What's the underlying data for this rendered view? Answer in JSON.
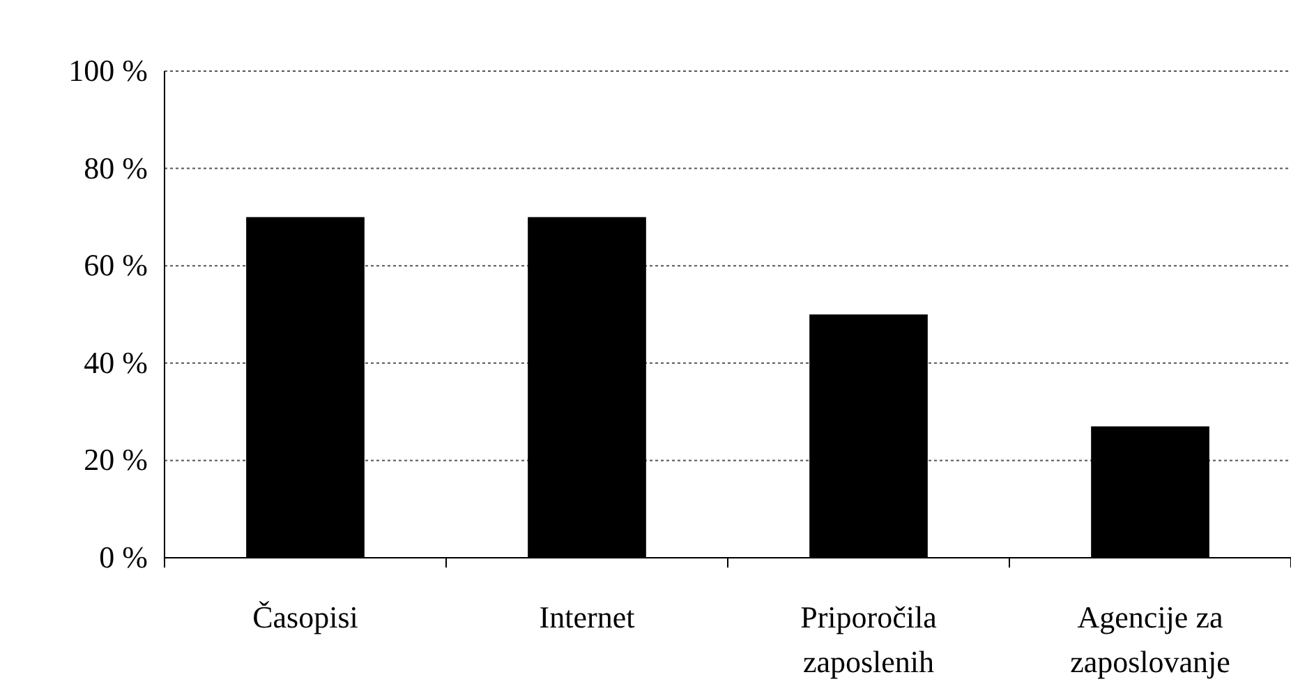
{
  "chart_data": {
    "type": "bar",
    "categories": [
      "Časopisi",
      "Internet",
      "Priporočila zaposlenih",
      "Agencije za zaposlovanje"
    ],
    "values": [
      70,
      70,
      50,
      27
    ],
    "color": "#000000",
    "ylim": [
      0,
      100
    ],
    "yticks": [
      {
        "value": 0,
        "label": "0 %"
      },
      {
        "value": 20,
        "label": "20 %"
      },
      {
        "value": 40,
        "label": "40 %"
      },
      {
        "value": 60,
        "label": "60 %"
      },
      {
        "value": 80,
        "label": "80 %"
      },
      {
        "value": 100,
        "label": "100 %"
      }
    ],
    "grid": "y"
  }
}
